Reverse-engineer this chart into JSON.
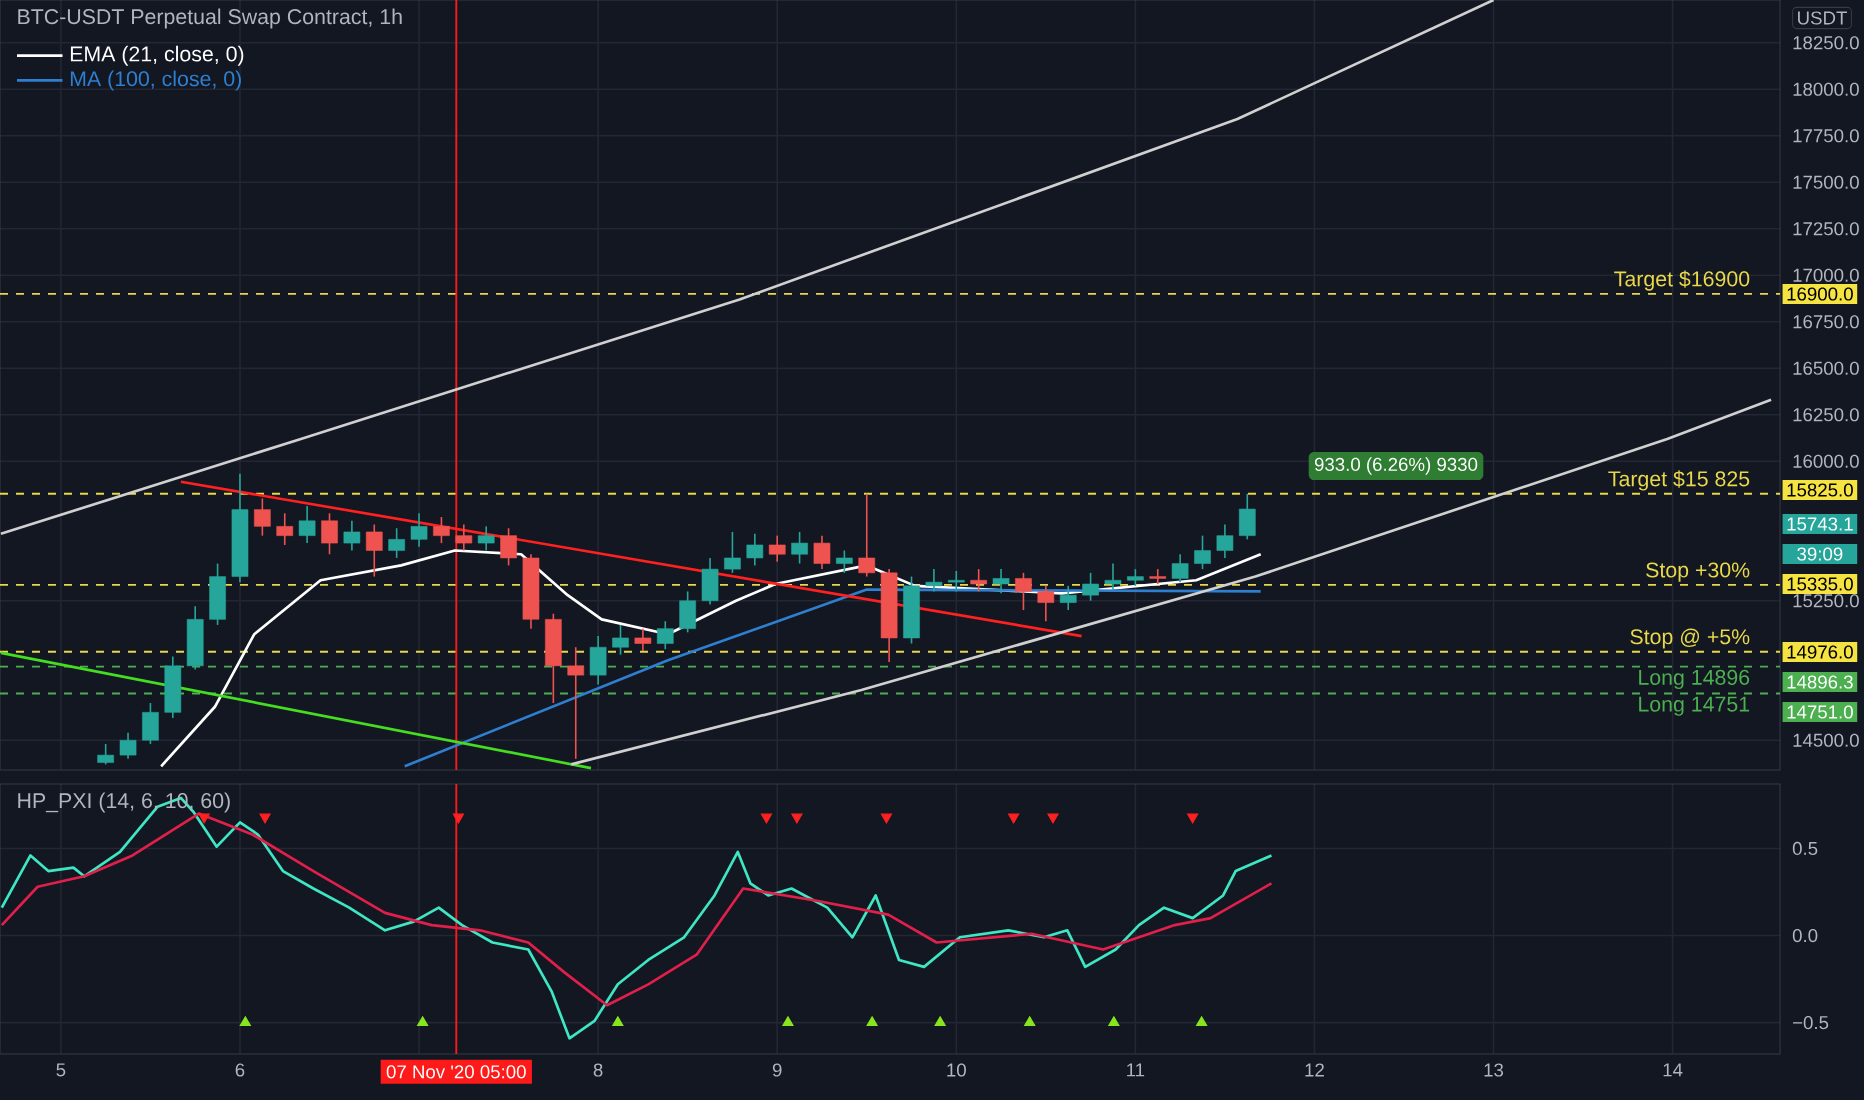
{
  "chart_data": [
    {
      "type": "candlestick",
      "title": "BTC-USDT Perpetual Swap Contract, 1h",
      "ylabel": "USDT",
      "x": [
        5.25,
        5.375,
        5.5,
        5.625,
        5.75,
        5.875,
        6.0,
        6.125,
        6.25,
        6.375,
        6.5,
        6.625,
        6.75,
        6.875,
        7.0,
        7.125,
        7.25,
        7.375,
        7.5,
        7.625,
        7.75,
        7.875,
        8.0,
        8.125,
        8.25,
        8.375,
        8.5,
        8.625,
        8.75,
        8.875,
        9.0,
        9.125,
        9.25,
        9.375,
        9.5,
        9.625,
        9.75,
        9.875,
        10.0,
        10.125,
        10.25,
        10.375,
        10.5,
        10.625,
        10.75,
        10.875,
        11.0,
        11.125,
        11.25,
        11.375,
        11.5,
        11.625
      ],
      "ohlc": [
        [
          14380,
          14480,
          14370,
          14420
        ],
        [
          14420,
          14540,
          14400,
          14500
        ],
        [
          14500,
          14700,
          14480,
          14650
        ],
        [
          14650,
          14950,
          14620,
          14900
        ],
        [
          14900,
          15220,
          14880,
          15150
        ],
        [
          15150,
          15450,
          15120,
          15380
        ],
        [
          15380,
          15933,
          15350,
          15740
        ],
        [
          15740,
          15800,
          15600,
          15650
        ],
        [
          15650,
          15720,
          15550,
          15600
        ],
        [
          15600,
          15760,
          15560,
          15680
        ],
        [
          15680,
          15720,
          15500,
          15560
        ],
        [
          15560,
          15680,
          15520,
          15620
        ],
        [
          15620,
          15660,
          15380,
          15520
        ],
        [
          15520,
          15640,
          15480,
          15580
        ],
        [
          15580,
          15720,
          15540,
          15650
        ],
        [
          15650,
          15700,
          15560,
          15600
        ],
        [
          15600,
          15660,
          15520,
          15560
        ],
        [
          15560,
          15650,
          15520,
          15600
        ],
        [
          15600,
          15640,
          15440,
          15480
        ],
        [
          15480,
          15500,
          15100,
          15150
        ],
        [
          15150,
          15180,
          14700,
          14900
        ],
        [
          14900,
          15000,
          14400,
          14850
        ],
        [
          14850,
          15060,
          14800,
          15000
        ],
        [
          15000,
          15120,
          14960,
          15050
        ],
        [
          15050,
          15100,
          14980,
          15020
        ],
        [
          15020,
          15140,
          14990,
          15100
        ],
        [
          15100,
          15300,
          15080,
          15250
        ],
        [
          15250,
          15480,
          15230,
          15420
        ],
        [
          15420,
          15620,
          15400,
          15480
        ],
        [
          15480,
          15610,
          15440,
          15550
        ],
        [
          15550,
          15600,
          15460,
          15500
        ],
        [
          15500,
          15620,
          15450,
          15560
        ],
        [
          15560,
          15600,
          15420,
          15450
        ],
        [
          15450,
          15520,
          15400,
          15480
        ],
        [
          15480,
          15825,
          15380,
          15400
        ],
        [
          15400,
          15420,
          14920,
          15050
        ],
        [
          15050,
          15380,
          15020,
          15330
        ],
        [
          15330,
          15420,
          15300,
          15350
        ],
        [
          15350,
          15410,
          15300,
          15360
        ],
        [
          15360,
          15420,
          15300,
          15340
        ],
        [
          15340,
          15420,
          15290,
          15370
        ],
        [
          15370,
          15400,
          15200,
          15300
        ],
        [
          15300,
          15330,
          15140,
          15240
        ],
        [
          15240,
          15330,
          15200,
          15280
        ],
        [
          15280,
          15400,
          15250,
          15340
        ],
        [
          15340,
          15450,
          15310,
          15360
        ],
        [
          15360,
          15420,
          15330,
          15380
        ],
        [
          15380,
          15420,
          15340,
          15370
        ],
        [
          15370,
          15500,
          15350,
          15450
        ],
        [
          15450,
          15600,
          15420,
          15520
        ],
        [
          15520,
          15660,
          15480,
          15600
        ],
        [
          15600,
          15825,
          15580,
          15743
        ]
      ],
      "series": [
        {
          "name": "EMA (21, close, 0)",
          "type": "line",
          "color": "#ffffff",
          "x": [
            5.56,
            5.86,
            6.08,
            6.45,
            6.9,
            7.2,
            7.57,
            7.83,
            8.02,
            8.39,
            8.77,
            8.99,
            9.5,
            9.77,
            10.59,
            11.34,
            11.7
          ],
          "values": [
            14360,
            14680,
            15070,
            15360,
            15440,
            15520,
            15500,
            15280,
            15150,
            15070,
            15250,
            15340,
            15440,
            15330,
            15290,
            15360,
            15500
          ]
        },
        {
          "name": "MA (100, close, 0)",
          "type": "line",
          "color": "#2e7fd0",
          "x": [
            6.92,
            8.39,
            9.5,
            11.7
          ],
          "values": [
            14360,
            14930,
            15310,
            15300
          ]
        },
        {
          "type": "line",
          "color": "#ff2020",
          "x": [
            5.67,
            10.7
          ],
          "values": [
            15890,
            15060
          ]
        },
        {
          "type": "line",
          "color": "#44dd22",
          "x": [
            4.665,
            7.96
          ],
          "values": [
            14970,
            14350
          ]
        },
        {
          "type": "line",
          "color": "#d0d0d0",
          "x": [
            4.665,
            6.34,
            8.79,
            11.57,
            13.0
          ],
          "values": [
            15610,
            16120,
            16870,
            17840,
            18480
          ]
        },
        {
          "type": "line",
          "color": "#d0d0d0",
          "x": [
            7.85,
            9.47,
            11.67,
            13.97,
            14.55
          ],
          "values": [
            14370,
            14770,
            15380,
            16120,
            16330
          ]
        }
      ],
      "xlim": [
        4.66,
        14.6
      ],
      "xticks": [
        5,
        6,
        {
          "value": 7,
          "label": null
        },
        8,
        9,
        10,
        11,
        12,
        13,
        14
      ],
      "ylim": [
        14340,
        18480
      ],
      "yticks": [
        {
          "value": 14500,
          "label": "14500.0"
        },
        {
          "value": 15250,
          "label": "15250.0"
        },
        {
          "value": 16000,
          "label": "16000.0"
        },
        {
          "value": 16250,
          "label": "16250.0"
        },
        {
          "value": 16500,
          "label": "16500.0"
        },
        {
          "value": 16750,
          "label": "16750.0"
        },
        {
          "value": 17000,
          "label": "17000.0"
        },
        {
          "value": 17250,
          "label": "17250.0"
        },
        {
          "value": 17500,
          "label": "17500.0"
        },
        {
          "value": 17750,
          "label": "17750.0"
        },
        {
          "value": 18000,
          "label": "18000.0"
        },
        {
          "value": 18250,
          "label": "18250.0"
        }
      ],
      "tick_labels": "y",
      "grid": true,
      "legend": "top left",
      "ref_lines": [
        {
          "axis": "y",
          "value": 16900,
          "label": "Target $16900",
          "color": "#e8d84a",
          "line_style": "dashed"
        },
        {
          "axis": "y",
          "value": 15825,
          "label": "Target $15 825",
          "color": "#e8d84a",
          "line_style": "dashed"
        },
        {
          "axis": "y",
          "value": 15335,
          "label": "Stop +30%",
          "color": "#e8d84a",
          "line_style": "dashed"
        },
        {
          "axis": "y",
          "value": 14976,
          "label": "Stop @ +5%",
          "color": "#e8d84a",
          "line_style": "dashed"
        },
        {
          "axis": "y",
          "value": 14896,
          "label": "Long 14896",
          "color": "#4caf50",
          "line_style": "dashed"
        },
        {
          "axis": "y",
          "value": 14751,
          "label": "Long 14751",
          "color": "#4caf50",
          "line_style": "dashed"
        },
        {
          "axis": "x",
          "value": 7.208,
          "color": "#ff1a1a",
          "line_style": "solid"
        }
      ],
      "annotations": [
        "16900.0",
        "15825.0",
        "15743.1",
        "39:09",
        "15335.0",
        "14976.0",
        "14896.3",
        "14751.0",
        "933.0 (6.26%) 9330"
      ]
    },
    {
      "type": "line",
      "title": "HP_PXI (14, 6, 10, 60)",
      "series": [
        {
          "type": "line",
          "color": "#3ee6c4",
          "x": [
            4.67,
            4.83,
            4.93,
            5.07,
            5.13,
            5.33,
            5.54,
            5.67,
            5.74,
            5.87,
            6.0,
            6.1,
            6.24,
            6.41,
            6.61,
            6.81,
            6.97,
            7.11,
            7.24,
            7.41,
            7.61,
            7.74,
            7.84,
            7.98,
            8.11,
            8.28,
            8.48,
            8.65,
            8.78,
            8.85,
            8.95,
            9.08,
            9.28,
            9.42,
            9.55,
            9.68,
            9.82,
            10.02,
            10.29,
            10.49,
            10.62,
            10.72,
            10.89,
            11.02,
            11.16,
            11.32,
            11.49,
            11.56,
            11.76
          ],
          "values": [
            0.16,
            0.46,
            0.37,
            0.39,
            0.34,
            0.48,
            0.74,
            0.79,
            0.71,
            0.51,
            0.65,
            0.58,
            0.37,
            0.27,
            0.16,
            0.03,
            0.08,
            0.16,
            0.06,
            -0.04,
            -0.08,
            -0.32,
            -0.59,
            -0.49,
            -0.28,
            -0.14,
            -0.01,
            0.23,
            0.48,
            0.3,
            0.23,
            0.27,
            0.16,
            -0.01,
            0.23,
            -0.14,
            -0.18,
            -0.01,
            0.03,
            -0.01,
            0.03,
            -0.18,
            -0.08,
            0.06,
            0.16,
            0.1,
            0.23,
            0.37,
            0.46
          ]
        },
        {
          "type": "line",
          "color": "#e0204a",
          "x": [
            4.67,
            4.87,
            5.13,
            5.4,
            5.77,
            6.07,
            6.41,
            6.81,
            7.07,
            7.34,
            7.61,
            7.81,
            8.05,
            8.28,
            8.55,
            8.81,
            9.22,
            9.62,
            9.89,
            10.42,
            10.82,
            11.22,
            11.42,
            11.76
          ],
          "values": [
            0.06,
            0.28,
            0.34,
            0.46,
            0.7,
            0.58,
            0.37,
            0.13,
            0.06,
            0.03,
            -0.04,
            -0.21,
            -0.4,
            -0.28,
            -0.11,
            0.27,
            0.2,
            0.12,
            -0.04,
            0.01,
            -0.08,
            0.06,
            0.1,
            0.3
          ]
        },
        {
          "type": "scatter",
          "marker": "triangle-down",
          "color": "#ff2020",
          "x": [
            5.8,
            6.14,
            7.22,
            8.94,
            9.11,
            9.61,
            10.32,
            10.54,
            11.32
          ],
          "values": [
            0.68,
            0.68,
            0.68,
            0.68,
            0.68,
            0.68,
            0.68,
            0.68,
            0.68
          ]
        },
        {
          "type": "scatter",
          "marker": "triangle",
          "color": "#88e61e",
          "x": [
            6.03,
            7.02,
            8.11,
            9.06,
            9.53,
            9.91,
            10.41,
            10.88,
            11.37
          ],
          "values": [
            -0.5,
            -0.5,
            -0.5,
            -0.5,
            -0.5,
            -0.5,
            -0.5,
            -0.5,
            -0.5
          ]
        }
      ],
      "xlim": [
        4.66,
        14.6
      ],
      "xticks": [
        5,
        6,
        {
          "value": 7,
          "label": null
        },
        8,
        9,
        10,
        11,
        12,
        13,
        14
      ],
      "ylim": [
        -0.68,
        0.87
      ],
      "yticks": [
        {
          "value": -0.5,
          "label": "−0.5"
        },
        {
          "value": 0,
          "label": "0.0"
        },
        {
          "value": 0.5,
          "label": "0.5"
        }
      ],
      "grid": true,
      "ref_lines": [
        {
          "axis": "x",
          "value": 7.208,
          "label": "07 Nov '20  05:00",
          "color": "#ff1a1a",
          "line_style": "solid"
        }
      ]
    }
  ]
}
